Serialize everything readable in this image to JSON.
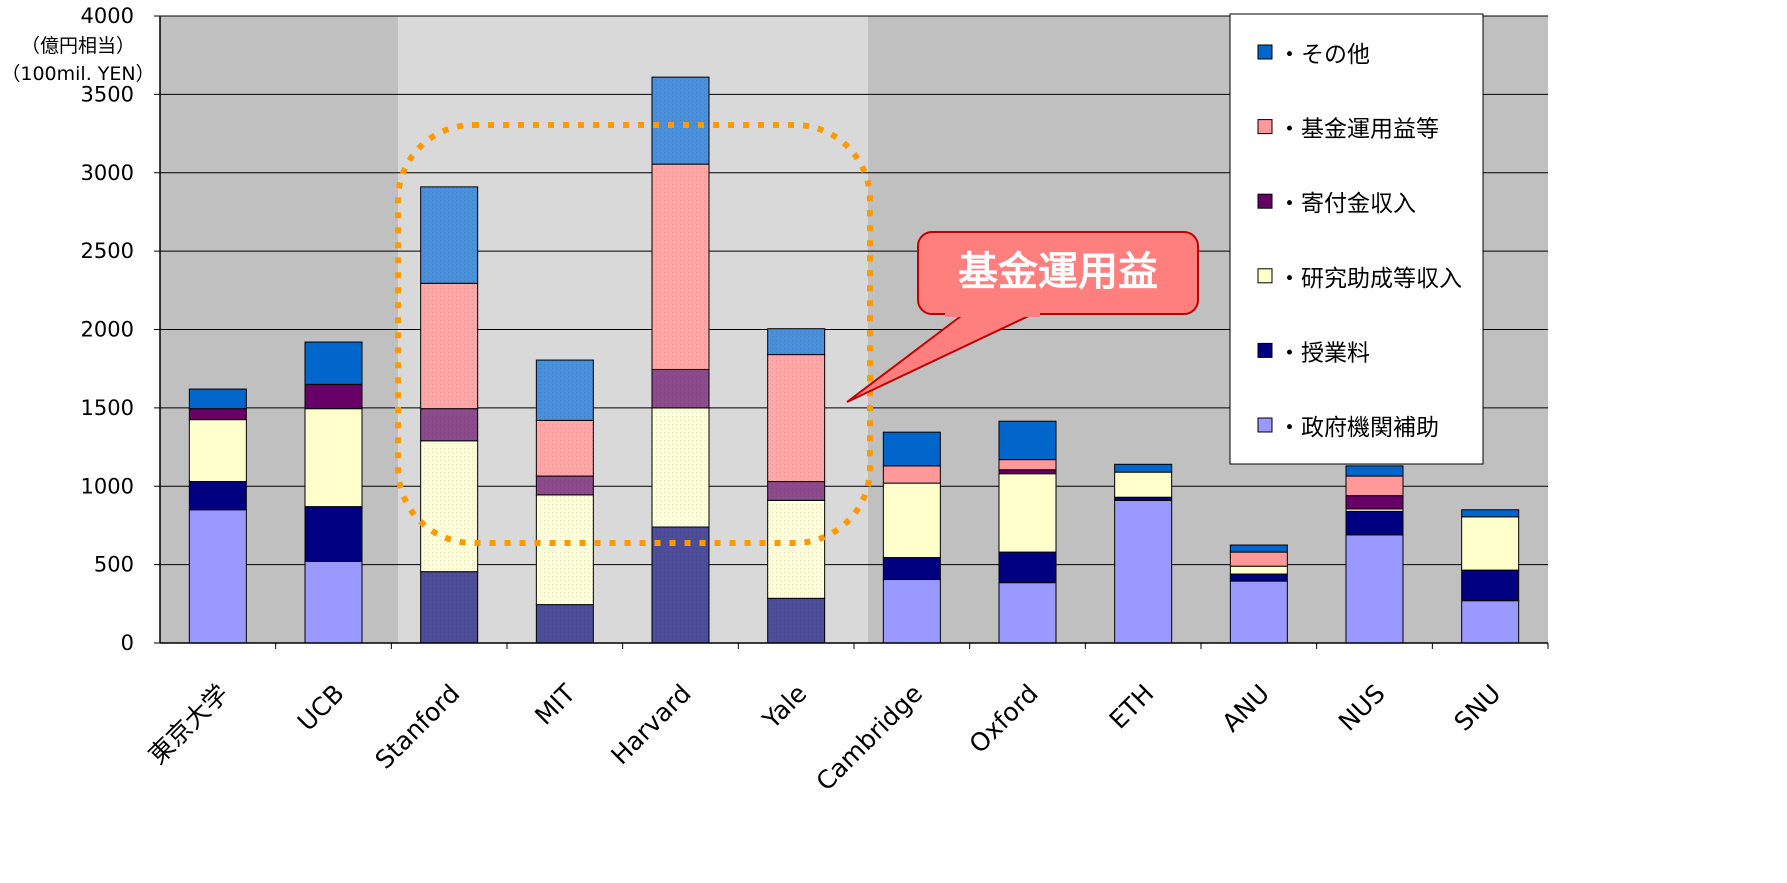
{
  "chart_data": {
    "type": "bar",
    "stacked": true,
    "ylabel_line1": "（億円相当）",
    "ylabel_line2": "（100mil. YEN）",
    "ylim": [
      0,
      4000
    ],
    "yticks": [
      0,
      500,
      1000,
      1500,
      2000,
      2500,
      3000,
      3500,
      4000
    ],
    "grid": true,
    "legend_position": "top-right",
    "categories": [
      "東京大学",
      "UCB",
      "Stanford",
      "MIT",
      "Harvard",
      "Yale",
      "Cambridge",
      "Oxford",
      "ETH",
      "ANU",
      "NUS",
      "SNU"
    ],
    "highlighted_categories": [
      "Stanford",
      "MIT",
      "Harvard",
      "Yale"
    ],
    "series": [
      {
        "name": "・政府機関補助",
        "color": "#9999ff",
        "values": [
          850,
          520,
          455,
          245,
          740,
          285,
          405,
          385,
          910,
          395,
          690,
          270
        ]
      },
      {
        "name": "・授業料",
        "color": "#000080",
        "values": [
          180,
          350,
          0,
          0,
          0,
          0,
          140,
          195,
          20,
          45,
          150,
          195
        ]
      },
      {
        "name": "・研究助成等収入",
        "color": "#ffffcc",
        "values": [
          395,
          625,
          835,
          700,
          760,
          625,
          475,
          500,
          160,
          50,
          15,
          340
        ]
      },
      {
        "name": "・寄付金収入",
        "color": "#660066",
        "values": [
          70,
          155,
          205,
          120,
          245,
          120,
          0,
          25,
          0,
          0,
          85,
          0
        ]
      },
      {
        "name": "・基金運用益等",
        "color": "#ff9999",
        "values": [
          0,
          0,
          800,
          355,
          1310,
          810,
          110,
          65,
          0,
          90,
          125,
          0
        ]
      },
      {
        "name": "・その他",
        "color": "#0066cc",
        "values": [
          125,
          270,
          615,
          385,
          555,
          165,
          215,
          245,
          50,
          45,
          65,
          45
        ]
      }
    ],
    "annotation": "基金運用益"
  }
}
